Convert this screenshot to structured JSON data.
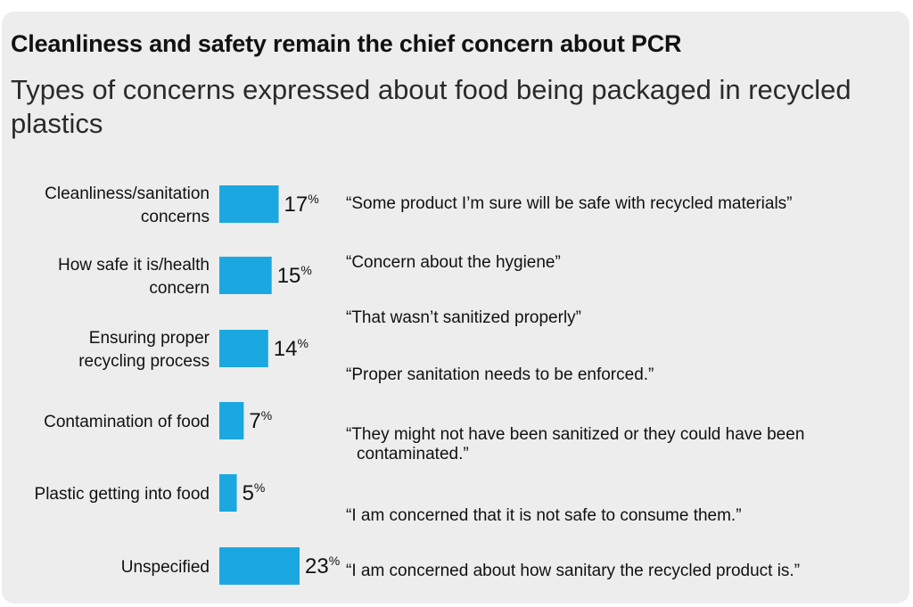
{
  "header": {
    "title": "Cleanliness and safety remain the chief concern about PCR",
    "subtitle": "Types of concerns expressed about food being packaged in recycled plastics"
  },
  "chart_data": {
    "type": "bar",
    "orientation": "horizontal",
    "categories": [
      [
        "Cleanliness/sanitation",
        "concerns"
      ],
      [
        "How safe it is/health",
        "concern"
      ],
      [
        "Ensuring proper",
        "recycling process"
      ],
      [
        "Contamination of food"
      ],
      [
        "Plastic getting into food"
      ],
      [
        "Unspecified"
      ]
    ],
    "values": [
      17,
      15,
      14,
      7,
      5,
      23
    ],
    "value_labels": [
      "17",
      "15",
      "14",
      "7",
      "5",
      "23"
    ],
    "unit": "%",
    "bar_color": "#1ba8e0",
    "grid": false,
    "legend": "none"
  },
  "quotes": [
    "“Some product I’m sure will be safe with recycled materials”",
    "“Concern about the hygiene”",
    "“That wasn’t sanitized properly”",
    "“Proper sanitation needs to be enforced.”",
    [
      "“They might not have been sanitized or they could have been",
      "contaminated.”"
    ],
    "“I am concerned that it is not safe to consume them.”",
    "“I am concerned about how sanitary the recycled product is.”"
  ],
  "colors": {
    "background": "#ededed",
    "bar": "#1ba8e0",
    "text": "#111111"
  }
}
